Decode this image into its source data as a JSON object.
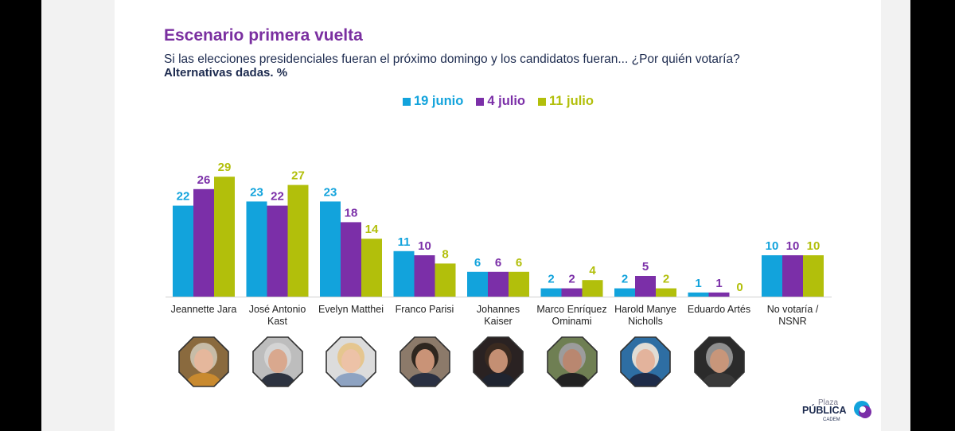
{
  "header": {
    "title": "Escenario primera vuelta",
    "subtitle": "Si las elecciones presidenciales fueran el próximo domingo y los candidatos fueran... ¿Por quién votaría?",
    "note": "Alternativas dadas. %"
  },
  "logo": {
    "line1": "Plaza",
    "line2": "PÚBLICA",
    "line3": "CADEM"
  },
  "chart_data": {
    "type": "bar",
    "title": "Escenario primera vuelta",
    "ylim": [
      0,
      32
    ],
    "categories": [
      "Jeannette Jara",
      "José Antonio Kast",
      "Evelyn Matthei",
      "Franco Parisi",
      "Johannes Kaiser",
      "Marco Enríquez Ominami",
      "Harold Manye Nicholls",
      "Eduardo Artés",
      "No votaría / NSNR"
    ],
    "category_lines": [
      [
        "Jeannette Jara"
      ],
      [
        "José Antonio",
        "Kast"
      ],
      [
        "Evelyn Matthei"
      ],
      [
        "Franco Parisi"
      ],
      [
        "Johannes",
        "Kaiser"
      ],
      [
        "Marco Enríquez",
        "Ominami"
      ],
      [
        "Harold Manye",
        "Nicholls"
      ],
      [
        "Eduardo Artés"
      ],
      [
        "No votaría /",
        "NSNR"
      ]
    ],
    "series": [
      {
        "name": "19 junio",
        "color": "#12a3dc",
        "values": [
          22,
          23,
          23,
          11,
          6,
          2,
          2,
          1,
          10
        ]
      },
      {
        "name": "4 julio",
        "color": "#7b2fa8",
        "values": [
          26,
          22,
          18,
          10,
          6,
          2,
          5,
          1,
          10
        ]
      },
      {
        "name": "11 julio",
        "color": "#b2bf0b",
        "values": [
          29,
          27,
          14,
          8,
          6,
          4,
          2,
          0,
          10
        ]
      }
    ],
    "legend": "top-center",
    "photos": [
      {
        "name": "jeannette-jara-photo",
        "bg": "#8a6a3e",
        "skin": "#e5b79c",
        "hair": "#c7bca7",
        "shirt": "#c98a2f"
      },
      {
        "name": "jose-antonio-kast-photo",
        "bg": "#bdbdbd",
        "skin": "#d9a88e",
        "hair": "#d4d4d4",
        "shirt": "#2d3340"
      },
      {
        "name": "evelyn-matthei-photo",
        "bg": "#dcdcdc",
        "skin": "#edc2a7",
        "hair": "#e5c68f",
        "shirt": "#8ea3c2"
      },
      {
        "name": "franco-parisi-photo",
        "bg": "#8c7a6a",
        "skin": "#c99377",
        "hair": "#2e261f",
        "shirt": "#2a3042"
      },
      {
        "name": "johannes-kaiser-photo",
        "bg": "#2a2222",
        "skin": "#c48f73",
        "hair": "#3a2a20",
        "shirt": "#1f2430"
      },
      {
        "name": "marco-enriquez-ominami-photo",
        "bg": "#6f7f53",
        "skin": "#b98770",
        "hair": "#9c9c9c",
        "shirt": "#222222"
      },
      {
        "name": "harold-manye-nicholls-photo",
        "bg": "#2e6ea3",
        "skin": "#e3b39c",
        "hair": "#e0dcd5",
        "shirt": "#1e2b48"
      },
      {
        "name": "eduardo-artes-photo",
        "bg": "#2b2b2b",
        "skin": "#c8967a",
        "hair": "#8f8f8f",
        "shirt": "#3a3a3a"
      }
    ]
  }
}
